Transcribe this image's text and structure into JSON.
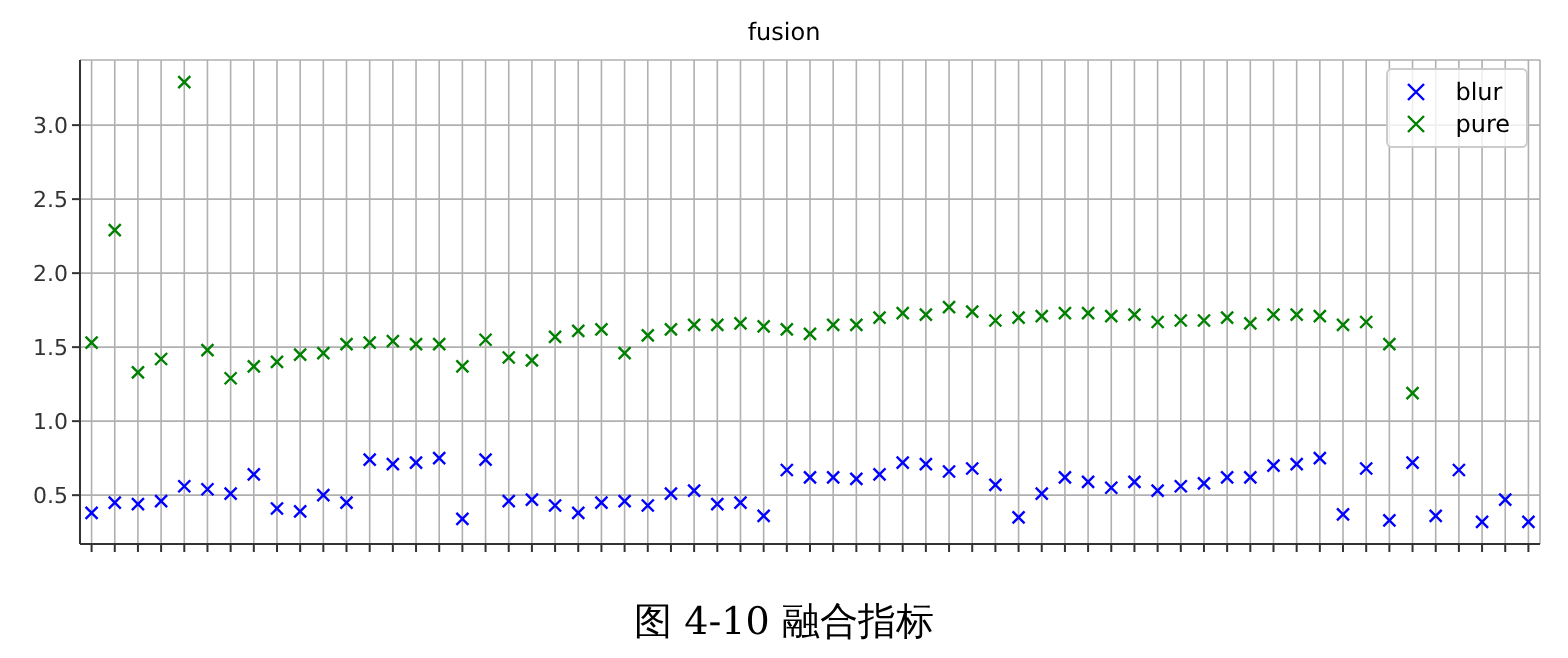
{
  "chart_data": {
    "type": "scatter",
    "title": "fusion",
    "annotations": [
      "图 4-10 融合指标"
    ],
    "categories": [
      null,
      null,
      null,
      null,
      null,
      null,
      null,
      null,
      null,
      null,
      null,
      null,
      null,
      null,
      null,
      null,
      null,
      null,
      null,
      null,
      null,
      null,
      null,
      null,
      null,
      null,
      null,
      null,
      null,
      null,
      null,
      null,
      null,
      null,
      null,
      null,
      null,
      null,
      null,
      null,
      null,
      null,
      null,
      null,
      null,
      null,
      null,
      null,
      null,
      null,
      null,
      null,
      null,
      null,
      null,
      null,
      null,
      null,
      null,
      null,
      null,
      null,
      null
    ],
    "series": [
      {
        "name": "blur",
        "color": "#0000ff",
        "values": [
          0.38,
          0.45,
          0.44,
          0.46,
          0.56,
          0.54,
          0.51,
          0.64,
          0.41,
          0.39,
          0.5,
          0.45,
          0.74,
          0.71,
          0.72,
          0.75,
          0.34,
          0.74,
          0.46,
          0.47,
          0.43,
          0.38,
          0.45,
          0.46,
          0.43,
          0.51,
          0.53,
          0.44,
          0.45,
          0.36,
          0.67,
          0.62,
          0.62,
          0.61,
          0.64,
          0.72,
          0.71,
          0.66,
          0.68,
          0.57,
          0.35,
          0.51,
          0.62,
          0.59,
          0.55,
          0.59,
          0.53,
          0.56,
          0.58,
          0.62,
          0.62,
          0.7,
          0.71,
          0.75,
          0.37,
          0.68,
          0.33,
          0.72,
          0.36,
          0.67,
          0.32,
          0.47,
          0.32
        ]
      },
      {
        "name": "pure",
        "color": "#008000",
        "values": [
          1.53,
          2.29,
          1.33,
          1.42,
          3.29,
          1.48,
          1.29,
          1.37,
          1.4,
          1.45,
          1.46,
          1.52,
          1.53,
          1.54,
          1.52,
          1.52,
          1.37,
          1.55,
          1.43,
          1.41,
          1.57,
          1.61,
          1.62,
          1.46,
          1.58,
          1.62,
          1.65,
          1.65,
          1.66,
          1.64,
          1.62,
          1.59,
          1.65,
          1.65,
          1.7,
          1.73,
          1.72,
          1.77,
          1.74,
          1.68,
          1.7,
          1.71,
          1.73,
          1.73,
          1.71,
          1.72,
          1.67,
          1.68,
          1.68,
          1.7,
          1.66,
          1.72,
          1.72,
          1.71,
          1.65,
          1.67,
          1.52,
          1.19,
          null,
          null,
          null,
          null,
          null
        ]
      }
    ],
    "ylim": [
      0.17,
      3.44
    ],
    "yticks": [
      0.5,
      {
        "value": 1,
        "label": "1.0"
      },
      1.5,
      {
        "value": 2,
        "label": "2.0"
      },
      2.5,
      {
        "value": 3,
        "label": "3.0"
      }
    ],
    "grid": true,
    "legend": "top right",
    "marker": "cross",
    "tick_labels": "y"
  }
}
